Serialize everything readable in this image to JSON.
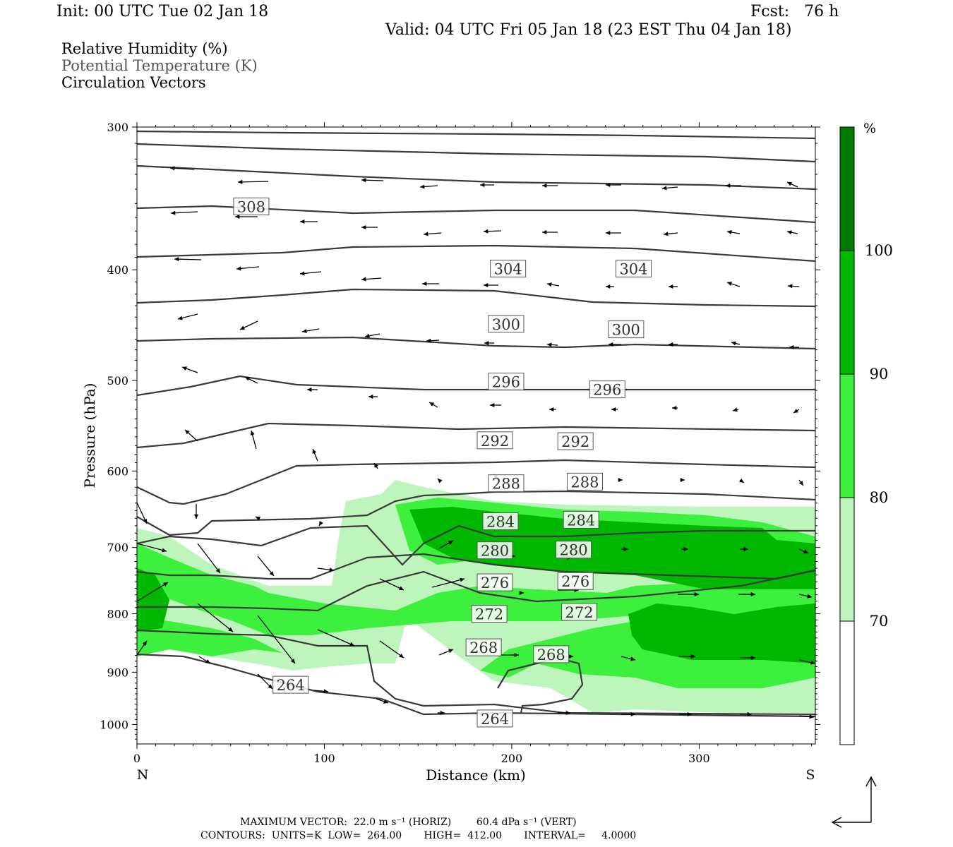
{
  "header": {
    "init": "Init: 00 UTC Tue 02 Jan 18",
    "fcst": "Fcst:   76 h",
    "valid": "Valid: 04 UTC Fri 05 Jan 18 (23 EST Thu 04 Jan 18)"
  },
  "legend": {
    "line1": "Relative Humidity (%)",
    "line2": "Potential Temperature (K)",
    "line3": "Circulation Vectors"
  },
  "footer": {
    "line1": "MAXIMUM VECTOR:  22.0 m s⁻¹ (HORIZ)        60.4 dPa s⁻¹ (VERT)",
    "line2": "CONTOURS:  UNITS=K  LOW=  264.00       HIGH=  412.00       INTERVAL=     4.0000"
  },
  "colors": {
    "rh_70_80": "#bdf5bd",
    "rh_80_90": "#3ef03e",
    "rh_90_100": "#00b800",
    "rh_100": "#007a00",
    "contour": "#3a3a3a",
    "vector": "#000000"
  },
  "chart_data": {
    "type": "cross-section",
    "xlabel": "Distance (km)",
    "ylabel": "Pressure (hPa)",
    "xlim": [
      0,
      362
    ],
    "ylim": [
      300,
      1040
    ],
    "y_scale": "log (reversed)",
    "x_ticks": [
      "0",
      "100",
      "200",
      "300"
    ],
    "y_ticks": [
      "300",
      "400",
      "500",
      "600",
      "700",
      "800",
      "900",
      "1000"
    ],
    "x_end_labels": {
      "left": "N",
      "right": "S"
    },
    "colorbar": {
      "unit": "%",
      "levels": [
        "70",
        "80",
        "90",
        "100"
      ]
    },
    "theta_levels_K": [
      264,
      268,
      272,
      276,
      280,
      284,
      288,
      292,
      296,
      300,
      304,
      308
    ],
    "contour_labels": [
      {
        "text": "308",
        "x": 61,
        "p": 352
      },
      {
        "text": "304",
        "x": 198,
        "p": 399
      },
      {
        "text": "304",
        "x": 265,
        "p": 399
      },
      {
        "text": "300",
        "x": 197,
        "p": 446
      },
      {
        "text": "300",
        "x": 261,
        "p": 451
      },
      {
        "text": "296",
        "x": 197,
        "p": 501
      },
      {
        "text": "296",
        "x": 251,
        "p": 509
      },
      {
        "text": "292",
        "x": 191,
        "p": 564
      },
      {
        "text": "292",
        "x": 234,
        "p": 565
      },
      {
        "text": "288",
        "x": 197,
        "p": 615
      },
      {
        "text": "288",
        "x": 239,
        "p": 613
      },
      {
        "text": "284",
        "x": 194,
        "p": 664
      },
      {
        "text": "284",
        "x": 237,
        "p": 662
      },
      {
        "text": "280",
        "x": 191,
        "p": 704
      },
      {
        "text": "280",
        "x": 233,
        "p": 703
      },
      {
        "text": "276",
        "x": 191,
        "p": 751
      },
      {
        "text": "276",
        "x": 234,
        "p": 749
      },
      {
        "text": "272",
        "x": 188,
        "p": 800
      },
      {
        "text": "272",
        "x": 236,
        "p": 797
      },
      {
        "text": "268",
        "x": 185,
        "p": 856
      },
      {
        "text": "268",
        "x": 221,
        "p": 868
      },
      {
        "text": "264",
        "x": 82,
        "p": 923
      },
      {
        "text": "264",
        "x": 191,
        "p": 988
      }
    ]
  }
}
